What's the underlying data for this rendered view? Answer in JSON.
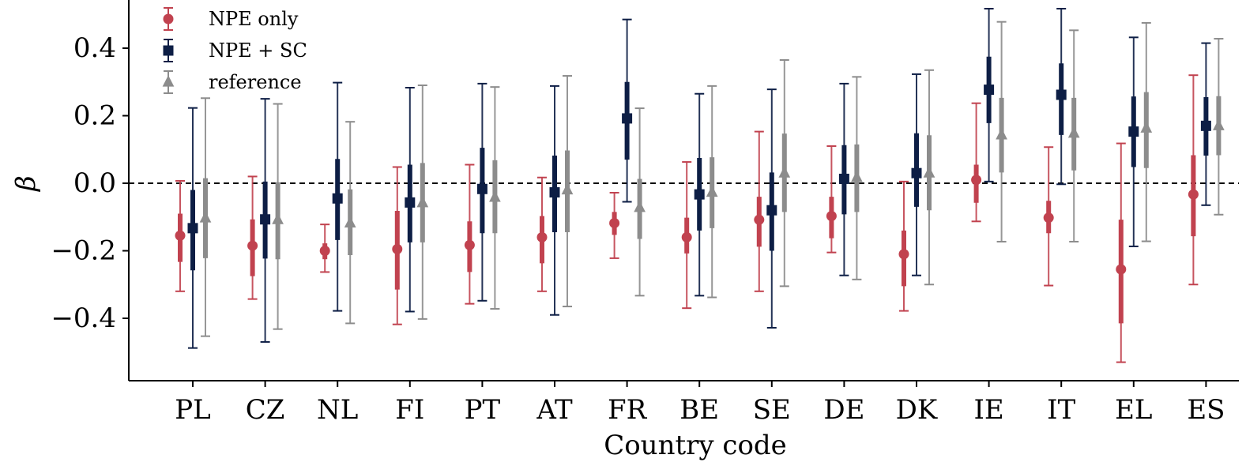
{
  "chart_data": {
    "type": "errorbar",
    "title": "",
    "xlabel": "Country code",
    "ylabel": "β",
    "ylim": [
      -0.58,
      0.54
    ],
    "yticks": [
      -0.4,
      -0.2,
      0.0,
      0.2,
      0.4
    ],
    "ytick_labels": [
      "−0.4",
      "−0.2",
      "0.0",
      "0.2",
      "0.4"
    ],
    "reference_line": 0.0,
    "legend_position": "top-left",
    "categories": [
      "PL",
      "CZ",
      "NL",
      "FI",
      "PT",
      "AT",
      "FR",
      "BE",
      "SE",
      "DE",
      "DK",
      "IE",
      "IT",
      "EL",
      "ES"
    ],
    "series": [
      {
        "name": "NPE only",
        "color": "#c1424f",
        "marker": "circle",
        "values": [
          -0.155,
          -0.185,
          -0.2,
          -0.195,
          -0.183,
          -0.16,
          -0.118,
          -0.16,
          -0.108,
          -0.097,
          -0.21,
          0.01,
          -0.102,
          -0.255,
          -0.033
        ],
        "ci95_low": [
          -0.32,
          -0.343,
          -0.263,
          -0.418,
          -0.357,
          -0.32,
          -0.222,
          -0.37,
          -0.32,
          -0.205,
          -0.378,
          -0.113,
          -0.303,
          -0.53,
          -0.3
        ],
        "ci95_high": [
          0.007,
          0.02,
          -0.122,
          0.048,
          0.055,
          0.017,
          -0.028,
          0.063,
          0.153,
          0.11,
          0.005,
          0.237,
          0.107,
          0.118,
          0.32
        ],
        "ci68_low": [
          -0.233,
          -0.275,
          -0.225,
          -0.315,
          -0.263,
          -0.237,
          -0.153,
          -0.208,
          -0.188,
          -0.163,
          -0.305,
          -0.058,
          -0.148,
          -0.415,
          -0.157
        ],
        "ci68_high": [
          -0.09,
          -0.107,
          -0.178,
          -0.082,
          -0.113,
          -0.097,
          -0.085,
          -0.102,
          -0.04,
          -0.04,
          -0.14,
          0.055,
          -0.052,
          -0.108,
          0.083
        ]
      },
      {
        "name": "NPE + SC",
        "color": "#0d1e45",
        "marker": "square",
        "values": [
          -0.133,
          -0.107,
          -0.045,
          -0.057,
          -0.017,
          -0.027,
          0.192,
          -0.033,
          -0.08,
          0.013,
          0.03,
          0.277,
          0.262,
          0.153,
          0.17
        ],
        "ci95_low": [
          -0.488,
          -0.47,
          -0.378,
          -0.38,
          -0.348,
          -0.39,
          -0.055,
          -0.333,
          -0.428,
          -0.273,
          -0.273,
          0.005,
          -0.003,
          -0.187,
          -0.065
        ],
        "ci95_high": [
          0.223,
          0.25,
          0.298,
          0.283,
          0.295,
          0.288,
          0.485,
          0.265,
          0.278,
          0.295,
          0.323,
          0.517,
          0.517,
          0.432,
          0.415
        ],
        "ci68_low": [
          -0.258,
          -0.223,
          -0.168,
          -0.175,
          -0.148,
          -0.145,
          0.07,
          -0.14,
          -0.2,
          -0.092,
          -0.07,
          0.178,
          0.143,
          0.048,
          0.082
        ],
        "ci68_high": [
          -0.02,
          0.005,
          0.072,
          0.055,
          0.105,
          0.082,
          0.3,
          0.075,
          0.032,
          0.113,
          0.148,
          0.375,
          0.355,
          0.257,
          0.255
        ]
      },
      {
        "name": "reference",
        "color": "#8c8c8c",
        "marker": "triangle",
        "values": [
          -0.103,
          -0.108,
          -0.118,
          -0.058,
          -0.042,
          -0.02,
          -0.072,
          -0.027,
          0.03,
          0.017,
          0.03,
          0.143,
          0.148,
          0.163,
          0.17
        ],
        "ci95_low": [
          -0.453,
          -0.432,
          -0.415,
          -0.402,
          -0.372,
          -0.365,
          -0.333,
          -0.338,
          -0.305,
          -0.285,
          -0.3,
          -0.173,
          -0.173,
          -0.172,
          -0.093
        ],
        "ci95_high": [
          0.252,
          0.235,
          0.182,
          0.29,
          0.285,
          0.318,
          0.222,
          0.288,
          0.365,
          0.315,
          0.335,
          0.478,
          0.453,
          0.475,
          0.428
        ],
        "ci68_low": [
          -0.222,
          -0.225,
          -0.213,
          -0.175,
          -0.148,
          -0.145,
          -0.165,
          -0.133,
          -0.085,
          -0.085,
          -0.08,
          0.032,
          0.038,
          0.045,
          0.083
        ],
        "ci68_high": [
          0.015,
          0.003,
          -0.018,
          0.06,
          0.068,
          0.097,
          0.013,
          0.077,
          0.147,
          0.115,
          0.142,
          0.253,
          0.253,
          0.27,
          0.258
        ]
      }
    ]
  }
}
